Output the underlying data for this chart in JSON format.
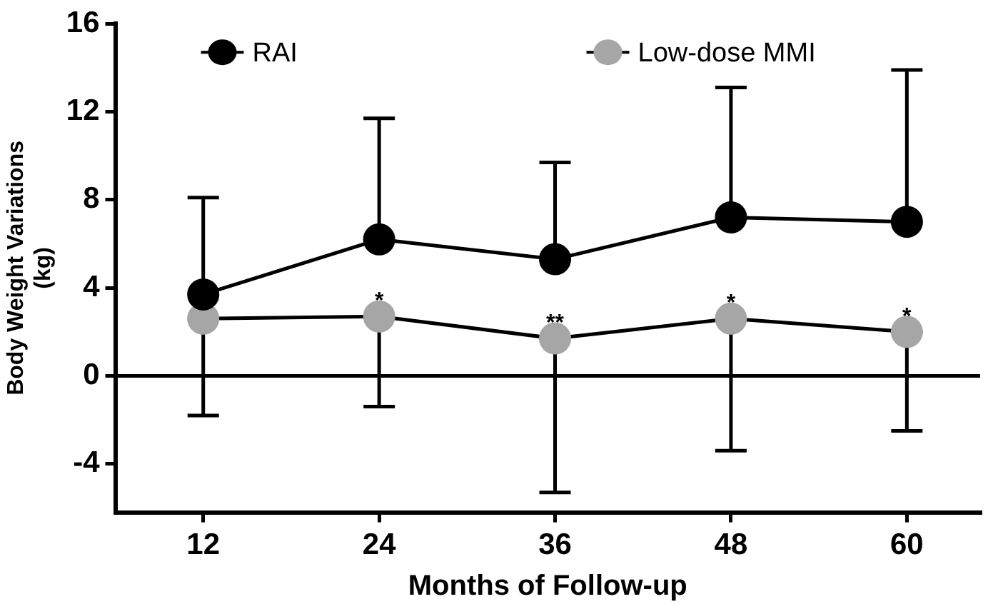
{
  "chart_data": {
    "type": "line",
    "xlabel": "Months of Follow-up",
    "ylabel": "Body Weight Variations (kg)",
    "x": [
      12,
      24,
      36,
      48,
      60
    ],
    "series": [
      {
        "name": "RAI",
        "color": "#000000",
        "values": [
          3.7,
          6.2,
          5.3,
          7.2,
          7.0
        ],
        "errors": [
          [
            3.7,
            8.1
          ],
          [
            6.2,
            11.7
          ],
          [
            5.3,
            9.7
          ],
          [
            7.2,
            13.1
          ],
          [
            7.0,
            13.9
          ]
        ]
      },
      {
        "name": "Low-dose MMI",
        "color": "#a6a6a6",
        "values": [
          2.6,
          2.7,
          1.7,
          2.6,
          2.0
        ],
        "errors": [
          [
            -1.8,
            2.6
          ],
          [
            -1.4,
            2.7
          ],
          [
            -5.3,
            1.7
          ],
          [
            -3.4,
            2.6
          ],
          [
            -2.5,
            2.0
          ]
        ]
      }
    ],
    "xlim": [
      6,
      65
    ],
    "xticks": [
      12,
      24,
      36,
      48,
      60
    ],
    "ylim": [
      -6.2,
      16
    ],
    "yticks": [
      -4,
      0,
      4,
      8,
      12,
      16
    ],
    "ref_lines": [
      {
        "axis": "y",
        "value": 0,
        "color": "#000000"
      }
    ],
    "annotations": [
      {
        "text": "*",
        "x": 24,
        "y": 2.7
      },
      {
        "text": "**",
        "x": 36,
        "y": 1.7
      },
      {
        "text": "*",
        "x": 48,
        "y": 2.6
      },
      {
        "text": "*",
        "x": 60,
        "y": 2.0
      }
    ],
    "legend": "top",
    "marker": "circle",
    "line_style": "solid",
    "grid": false
  }
}
